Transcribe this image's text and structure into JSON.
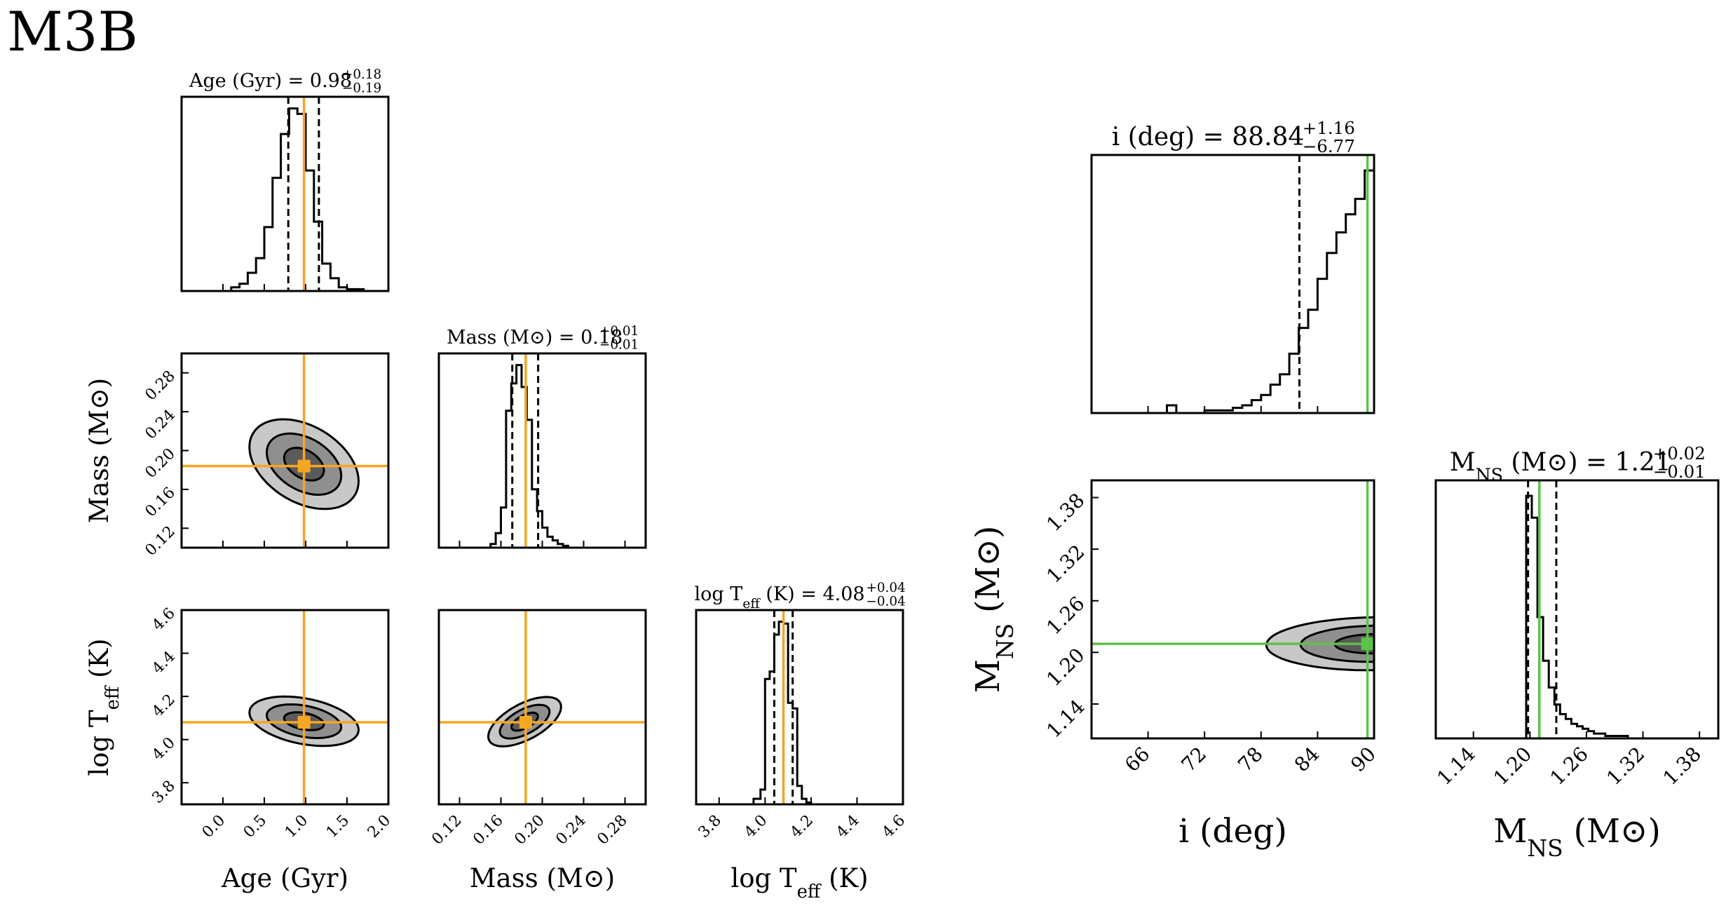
{
  "figure_label": "M3B",
  "colors": {
    "left_marker": "#f5a623",
    "right_marker": "#5cc24a",
    "contour_inner": "#5a5a5a",
    "contour_mid": "#8f8f8f",
    "contour_outer": "#c8c8c8",
    "line": "#000000"
  },
  "chart_data": [
    {
      "type": "corner",
      "name": "left-corner",
      "parameters": [
        {
          "key": "age",
          "label": "Age (Gyr)",
          "title_name": "Age (Gyr)",
          "median": "0.98",
          "plus": "+0.18",
          "minus": "−0.19",
          "range": [
            -0.5,
            2.0
          ],
          "ticks": [
            0.0,
            0.5,
            1.0,
            1.5,
            2.0
          ],
          "tick_labels": [
            "0.0",
            "0.5",
            "1.0",
            "1.5",
            "2.0"
          ],
          "truth": 0.98,
          "quantiles": [
            0.79,
            1.16
          ],
          "hist_edges": [
            0.1,
            0.2,
            0.3,
            0.4,
            0.5,
            0.6,
            0.7,
            0.8,
            0.9,
            1.0,
            1.1,
            1.2,
            1.3,
            1.4,
            1.5,
            1.6,
            1.7
          ],
          "hist_counts": [
            2,
            4,
            10,
            18,
            35,
            62,
            86,
            100,
            97,
            66,
            38,
            15,
            7,
            2,
            1,
            1
          ]
        },
        {
          "key": "mass",
          "label": "Mass (M⊙)",
          "title_name": "Mass (M⊙)",
          "median": "0.18",
          "plus": "+0.01",
          "minus": "−0.01",
          "range": [
            0.1,
            0.3
          ],
          "ticks": [
            0.12,
            0.16,
            0.2,
            0.24,
            0.28
          ],
          "tick_labels": [
            "0.12",
            "0.16",
            "0.20",
            "0.24",
            "0.28"
          ],
          "truth": 0.184,
          "quantiles": [
            0.171,
            0.196
          ],
          "hist_edges": [
            0.15,
            0.155,
            0.16,
            0.165,
            0.17,
            0.175,
            0.18,
            0.185,
            0.19,
            0.195,
            0.2,
            0.205,
            0.21,
            0.215,
            0.22,
            0.225
          ],
          "hist_counts": [
            2,
            8,
            22,
            75,
            90,
            100,
            88,
            70,
            32,
            20,
            11,
            6,
            4,
            2,
            1
          ]
        },
        {
          "key": "logteff",
          "label": "log T_eff (K)",
          "title_name": "log T_eff (K)",
          "median": "4.08",
          "plus": "+0.04",
          "minus": "−0.04",
          "range": [
            3.7,
            4.6
          ],
          "ticks": [
            3.8,
            4.0,
            4.2,
            4.4,
            4.6
          ],
          "tick_labels": [
            "3.8",
            "4.0",
            "4.2",
            "4.4",
            "4.6"
          ],
          "truth": 4.08,
          "quantiles": [
            4.04,
            4.12
          ],
          "hist_edges": [
            3.95,
            3.98,
            4.0,
            4.02,
            4.04,
            4.06,
            4.08,
            4.1,
            4.12,
            4.14,
            4.16,
            4.18,
            4.2
          ],
          "hist_counts": [
            3,
            8,
            68,
            72,
            92,
            99,
            98,
            55,
            52,
            10,
            3,
            1
          ]
        }
      ],
      "twod": [
        {
          "col": 0,
          "row": 1,
          "cx": 0.98,
          "cy": 0.186,
          "sx": 0.3,
          "sy": 0.021,
          "rho": -0.38
        },
        {
          "col": 0,
          "row": 2,
          "cx": 0.98,
          "cy": 4.085,
          "sx": 0.3,
          "sy": 0.052,
          "rho": -0.35
        },
        {
          "col": 1,
          "row": 2,
          "cx": 0.183,
          "cy": 4.083,
          "sx": 0.016,
          "sy": 0.052,
          "rho": 0.6
        }
      ],
      "y_ticks": {
        "mass": {
          "ticks": [
            0.12,
            0.16,
            0.2,
            0.24,
            0.28
          ],
          "labels": [
            "0.12",
            "0.16",
            "0.20",
            "0.24",
            "0.28"
          ],
          "range": [
            0.1,
            0.3
          ]
        },
        "logteff": {
          "ticks": [
            3.8,
            4.0,
            4.2,
            4.4,
            4.6
          ],
          "labels": [
            "3.8",
            "4.0",
            "4.2",
            "4.4",
            "4.6"
          ],
          "range": [
            3.7,
            4.6
          ]
        }
      }
    },
    {
      "type": "corner",
      "name": "right-corner",
      "parameters": [
        {
          "key": "incl",
          "label": "i (deg)",
          "title_name": "i (deg)",
          "median": "88.84",
          "plus": "+1.16",
          "minus": "−6.77",
          "range": [
            60,
            90
          ],
          "ticks": [
            66,
            72,
            78,
            84,
            90
          ],
          "tick_labels": [
            "66",
            "72",
            "78",
            "84",
            "90"
          ],
          "truth": 89.3,
          "quantiles": [
            82.07,
            90.0
          ],
          "hist_edges": [
            68.0,
            69.0,
            70.0,
            71.0,
            72.0,
            73.0,
            74.0,
            75.0,
            76.0,
            77.0,
            78.0,
            79.0,
            80.0,
            81.0,
            82.0,
            83.0,
            84.0,
            85.0,
            86.0,
            87.0,
            88.0,
            89.0,
            90.0
          ],
          "hist_counts": [
            3,
            0,
            0,
            0,
            1,
            1,
            1,
            2,
            3,
            5,
            7,
            11,
            15,
            23,
            33,
            40,
            52,
            62,
            70,
            77,
            83,
            94
          ]
        },
        {
          "key": "mns",
          "label": "M_NS (M⊙)",
          "title_name": "M_NS (M⊙)",
          "median": "1.21",
          "plus": "+0.02",
          "minus": "−0.01",
          "range": [
            1.1,
            1.4
          ],
          "ticks": [
            1.14,
            1.2,
            1.26,
            1.32,
            1.38
          ],
          "tick_labels": [
            "1.14",
            "1.20",
            "1.26",
            "1.32",
            "1.38"
          ],
          "truth": 1.21,
          "quantiles": [
            1.198,
            1.228
          ],
          "hist_edges": [
            1.196,
            1.202,
            1.208,
            1.214,
            1.22,
            1.226,
            1.232,
            1.238,
            1.244,
            1.25,
            1.256,
            1.262,
            1.268,
            1.274,
            1.28,
            1.286,
            1.292,
            1.298,
            1.304,
            1.31
          ],
          "hist_counts": [
            100,
            91,
            50,
            32,
            21,
            14,
            10,
            8,
            6,
            5,
            4,
            3,
            2,
            2,
            1,
            1,
            1,
            1,
            0
          ]
        }
      ],
      "twod": [
        {
          "col": 0,
          "row": 1,
          "cx": 90.0,
          "cy": 1.21,
          "sx": 5.2,
          "sy": 0.014,
          "rho": 0.05
        }
      ],
      "y_ticks": {
        "mns": {
          "ticks": [
            1.14,
            1.2,
            1.26,
            1.32,
            1.38
          ],
          "labels": [
            "1.14",
            "1.20",
            "1.26",
            "1.32",
            "1.38"
          ],
          "range": [
            1.1,
            1.4
          ]
        }
      }
    }
  ]
}
